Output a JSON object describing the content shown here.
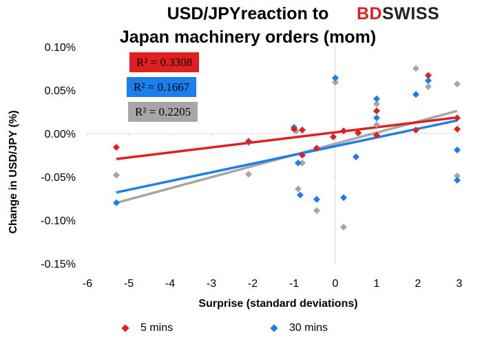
{
  "title_line1": "USD/JPYreaction to",
  "title_line2": "Japan machinery orders (mom)",
  "logo": {
    "part1": "BD",
    "part2": "SWISS",
    "color1": "#e02020",
    "color2": "#222222"
  },
  "chart_data": {
    "type": "scatter",
    "xlabel": "Surprise (standard deviations)",
    "ylabel": "Change in USD/JPY  (%)",
    "xlim": [
      -6,
      3
    ],
    "ylim": [
      -0.15,
      0.1
    ],
    "xticks": [
      "-6",
      "-5",
      "-4",
      "-3",
      "-2",
      "-1",
      "0",
      "1",
      "2",
      "3"
    ],
    "yticks": [
      "0.10%",
      "0.05%",
      "0.00%",
      "-0.05%",
      "-0.10%",
      "-0.15%"
    ],
    "grid": false,
    "legend_position": "bottom",
    "series": [
      {
        "name": "5 mins",
        "color": "#e02020",
        "r2": "R² = 0.3308",
        "trend": [
          [
            -5.3,
            -0.0295
          ],
          [
            2.95,
            0.0185
          ]
        ],
        "points": [
          [
            -5.3,
            -0.016
          ],
          [
            -2.1,
            -0.009
          ],
          [
            -1.0,
            0.005
          ],
          [
            -0.8,
            0.004
          ],
          [
            -0.8,
            -0.025
          ],
          [
            -0.45,
            -0.017
          ],
          [
            -0.05,
            -0.004
          ],
          [
            0.2,
            0.003
          ],
          [
            0.55,
            0.001
          ],
          [
            1.0,
            0.026
          ],
          [
            1.0,
            -0.002
          ],
          [
            1.95,
            0.004
          ],
          [
            2.25,
            0.067
          ],
          [
            2.95,
            0.018
          ],
          [
            2.95,
            0.005
          ]
        ]
      },
      {
        "name": "30 mins",
        "color": "#1a7fea",
        "r2": "R² = 0.1667",
        "trend": [
          [
            -5.3,
            -0.068
          ],
          [
            2.95,
            0.015
          ]
        ],
        "points": [
          [
            -5.3,
            -0.08
          ],
          [
            -2.1,
            -0.01
          ],
          [
            -1.0,
            0.007
          ],
          [
            -0.9,
            -0.034
          ],
          [
            -0.85,
            -0.071
          ],
          [
            -0.45,
            -0.076
          ],
          [
            0.0,
            0.064
          ],
          [
            0.2,
            -0.074
          ],
          [
            0.5,
            -0.027
          ],
          [
            1.0,
            0.04
          ],
          [
            1.0,
            0.018
          ],
          [
            1.95,
            0.045
          ],
          [
            2.25,
            0.061
          ],
          [
            2.95,
            -0.019
          ],
          [
            2.95,
            -0.054
          ]
        ]
      },
      {
        "name": "",
        "color": "#a6a6a6",
        "r2": "R² = 0.2205",
        "trend": [
          [
            -5.3,
            -0.08
          ],
          [
            2.95,
            0.026
          ]
        ],
        "points": [
          [
            -5.3,
            -0.048
          ],
          [
            -2.1,
            -0.047
          ],
          [
            -0.95,
            0.003
          ],
          [
            -0.9,
            -0.064
          ],
          [
            -0.8,
            -0.034
          ],
          [
            -0.45,
            -0.089
          ],
          [
            0.0,
            0.059
          ],
          [
            0.2,
            -0.108
          ],
          [
            0.55,
            0.0
          ],
          [
            1.0,
            0.034
          ],
          [
            1.0,
            0.01
          ],
          [
            1.95,
            0.075
          ],
          [
            2.25,
            0.054
          ],
          [
            2.95,
            0.057
          ],
          [
            2.95,
            -0.049
          ]
        ]
      }
    ]
  }
}
